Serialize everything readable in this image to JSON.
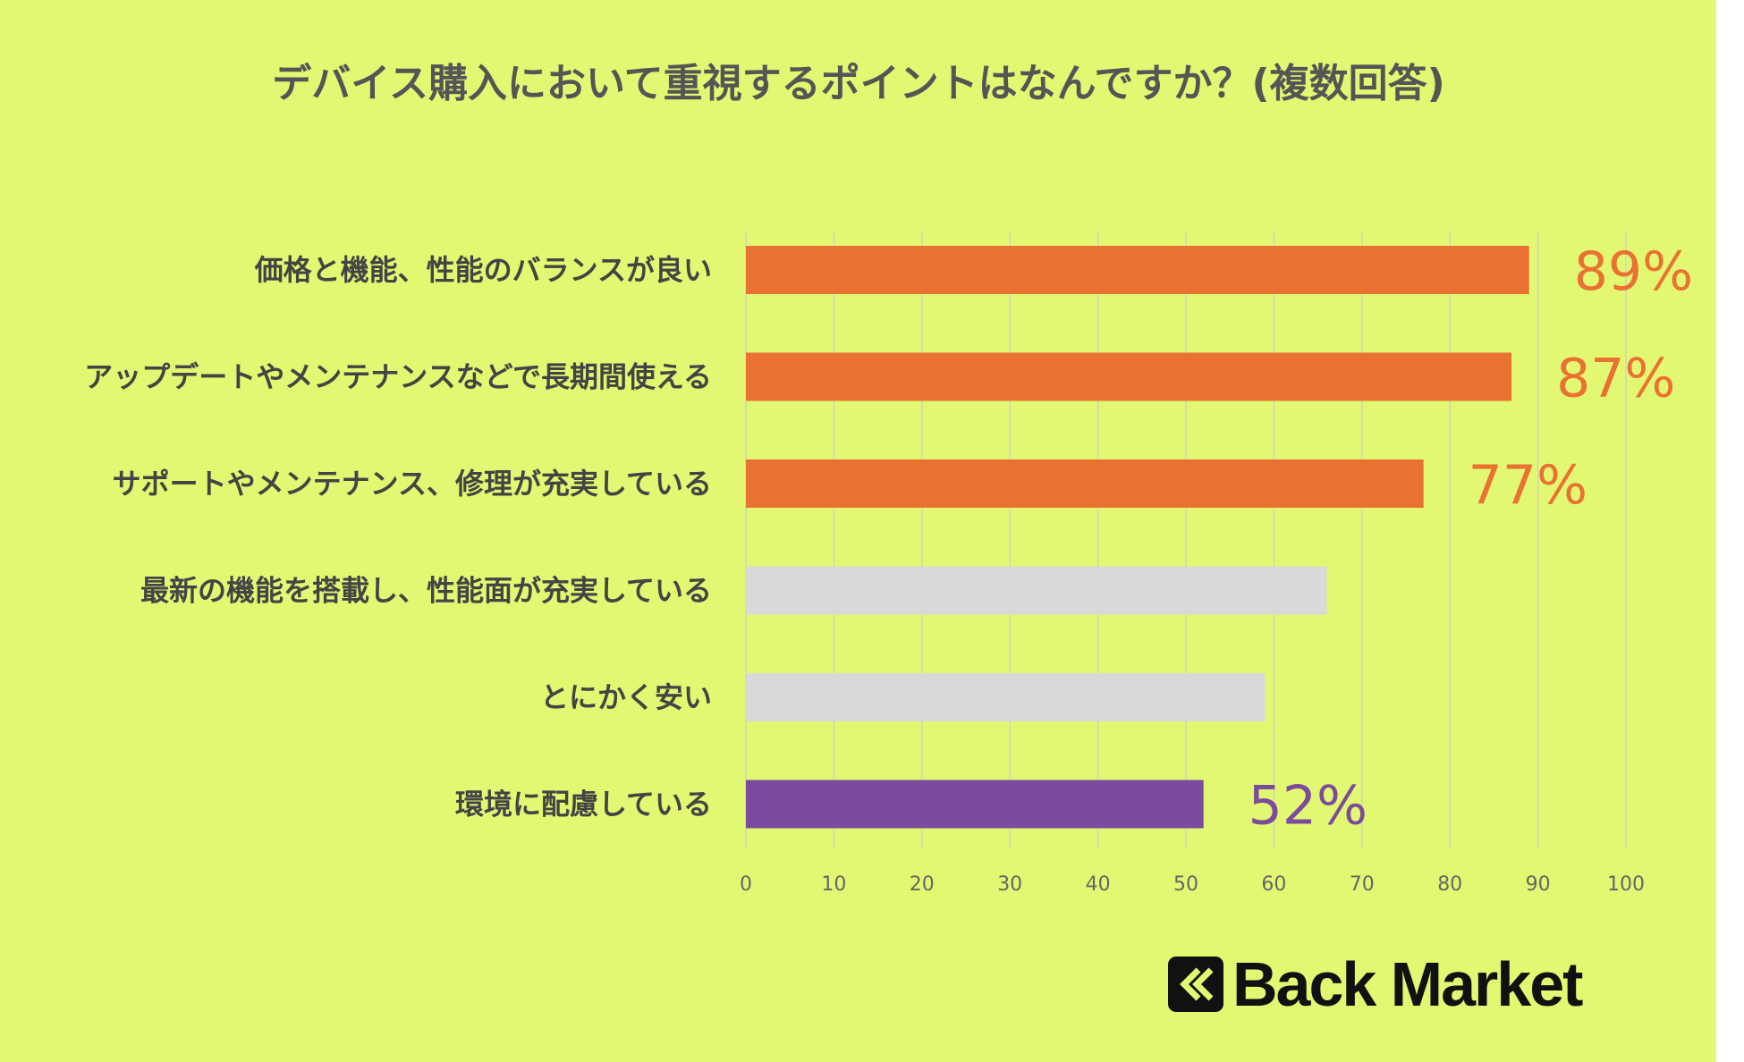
{
  "brand": "Back Market",
  "chart_data": {
    "type": "bar",
    "orientation": "horizontal",
    "title": "デバイス購入において重視するポイントはなんですか？(複数回答)",
    "categories": [
      "価格と機能、性能のバランスが良い",
      "アップデートやメンテナンスなどで長期間使える",
      "サポートやメンテナンス、修理が充実している",
      "最新の機能を搭載し、性能面が充実している",
      "とにかく安い",
      "環境に配慮している"
    ],
    "values": [
      89,
      87,
      77,
      66,
      59,
      52
    ],
    "data_labels": [
      "89%",
      "87%",
      "77%",
      "",
      "",
      "52%"
    ],
    "bar_colors": [
      "#e97132",
      "#e97132",
      "#e97132",
      "#d9d9d9",
      "#d9d9d9",
      "#7b4b9e"
    ],
    "label_colors": [
      "#e97132",
      "#e97132",
      "#e97132",
      "",
      "",
      "#7b4b9e"
    ],
    "xlim": [
      0,
      100
    ],
    "x_ticks": [
      0,
      10,
      20,
      30,
      40,
      50,
      60,
      70,
      80,
      90,
      100
    ],
    "grid": true,
    "background": "#e3f872"
  }
}
